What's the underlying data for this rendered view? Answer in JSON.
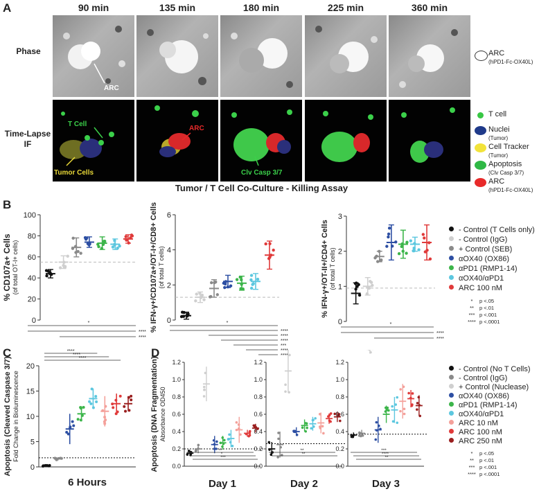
{
  "panelA": {
    "letter": "A",
    "times": [
      "90 min",
      "135 min",
      "180 min",
      "225 min",
      "360 min"
    ],
    "row_phase": "Phase",
    "row_if": "Time-Lapse IF",
    "annot_arc_phase": "ARC",
    "annot_tcell": "T Cell",
    "annot_tumor": "Tumor Cells",
    "annot_arc_if": "ARC",
    "annot_clv": "Clv Casp 3/7",
    "caption": "Tumor / T Cell Co-Culture - Killing Assay",
    "legend_phase": {
      "label": "ARC",
      "sub": "(hPD1-Fc-OX40L)"
    },
    "legend_if": [
      {
        "label": "T cell",
        "sub": "",
        "color": "#38c744"
      },
      {
        "label": "Nuclei",
        "sub": "(Tumor)",
        "color": "#1f3a8a"
      },
      {
        "label": "Cell Tracker",
        "sub": "(Tumor)",
        "color": "#f2e33a"
      },
      {
        "label": "Apoptosis",
        "sub": "(Clv Casp 3/7)",
        "color": "#2fb845"
      },
      {
        "label": "ARC",
        "sub": "(hPD1-Fc-OX40L)",
        "color": "#e82a2a"
      }
    ]
  },
  "panelB": {
    "letter": "B",
    "legend": [
      {
        "label": "- Control (T Cells only)",
        "color": "#111111"
      },
      {
        "label": "- Control (IgG)",
        "color": "#cfcfcf"
      },
      {
        "label": "+ Control (SEB)",
        "color": "#8a8a8a"
      },
      {
        "label": "αOX40 (OX86)",
        "color": "#2d4fa3"
      },
      {
        "label": "αPD1 (RMP1-14)",
        "color": "#3cb54a"
      },
      {
        "label": "αOX40/αPD1",
        "color": "#5cc7df"
      },
      {
        "label": "ARC 100 nM",
        "color": "#e03a3a"
      }
    ],
    "pvals": [
      {
        "stars": "*",
        "text": "p <.05"
      },
      {
        "stars": "**",
        "text": "p <.01"
      },
      {
        "stars": "***",
        "text": "p <.001"
      },
      {
        "stars": "****",
        "text": "p <.0001"
      }
    ]
  },
  "chart_data": [
    {
      "type": "scatter",
      "title": "",
      "ylabel": "% CD107a+ Cells",
      "ylabel_sub": "(of total OT-I+ cells)",
      "ylim": [
        0,
        100
      ],
      "yticks": [
        0,
        20,
        40,
        60,
        80,
        100
      ],
      "groups": [
        "- Control (T Cells only)",
        "- Control (IgG)",
        "+ Control (SEB)",
        "αOX40 (OX86)",
        "αPD1 (RMP1-14)",
        "αOX40/αPD1",
        "ARC 100 nM"
      ],
      "means": [
        44,
        55,
        69,
        74,
        73,
        72,
        77
      ],
      "errors": [
        4,
        6,
        9,
        5,
        6,
        5,
        4
      ],
      "baseline": 55,
      "sig_stars": [
        "*",
        "****",
        "****"
      ]
    },
    {
      "type": "scatter",
      "title": "",
      "ylabel": "% IFN-γ+/CD107a+/OT-I+/CD8+ Cells",
      "ylabel_sub": "(of total T cells)",
      "ylim": [
        0,
        6
      ],
      "yticks": [
        0,
        2,
        4,
        6
      ],
      "groups": [
        "- Control (T Cells only)",
        "- Control (IgG)",
        "+ Control (SEB)",
        "αOX40 (OX86)",
        "αPD1 (RMP1-14)",
        "αOX40/αPD1",
        "ARC 100 nM"
      ],
      "means": [
        0.25,
        1.3,
        1.8,
        2.2,
        2.1,
        2.2,
        3.7
      ],
      "errors": [
        0.2,
        0.3,
        0.5,
        0.35,
        0.4,
        0.45,
        0.8
      ],
      "baseline": 1.3,
      "sig_stars": [
        "*",
        "****",
        "****",
        "****",
        "***",
        "****",
        "****"
      ]
    },
    {
      "type": "scatter",
      "title": "",
      "ylabel": "% IFN-γ+/OT-II+/CD4+ Cells",
      "ylabel_sub": "(of total T cells)",
      "ylim": [
        0,
        3
      ],
      "yticks": [
        0,
        1,
        2,
        3
      ],
      "groups": [
        "- Control (T Cells only)",
        "- Control (IgG)",
        "+ Control (SEB)",
        "αOX40 (OX86)",
        "αPD1 (RMP1-14)",
        "αOX40/αPD1",
        "ARC 100 nM"
      ],
      "means": [
        0.8,
        1.0,
        1.85,
        2.25,
        2.2,
        2.2,
        2.25
      ],
      "errors": [
        0.3,
        0.25,
        0.15,
        0.5,
        0.4,
        0.2,
        0.5
      ],
      "baseline": 0.95,
      "sig_stars": [
        "*",
        "****",
        "****"
      ]
    },
    {
      "type": "scatter",
      "ylabel": "Apoptosis (Cleaved Caspase 3/7)",
      "ylabel_sub": "Fold Change in Bioluminescence",
      "xlabel": "6 Hours",
      "ylim": [
        0,
        20
      ],
      "yticks": [
        0,
        5,
        10,
        15,
        20
      ],
      "groups": [
        "- Control (No T Cells)",
        "- Control (IgG)",
        "αOX40 (OX86)",
        "αPD1 (RMP1-14)",
        "αOX40/αPD1",
        "ARC 10 nM",
        "ARC 100 nM",
        "ARC 250 nM"
      ],
      "means": [
        0.2,
        1.6,
        7.5,
        10.5,
        13.5,
        11,
        12.5,
        12.5
      ],
      "errors": [
        0.1,
        0.3,
        3,
        1.5,
        2,
        3,
        2,
        1.5
      ],
      "baseline": 1.8,
      "sig_stars": [
        "****",
        "****",
        "****"
      ]
    },
    {
      "type": "scatter",
      "ylabel": "Apoptosis (DNA Fragmentation)",
      "ylabel_sub": "Absorbance OD450",
      "ylim": [
        0,
        1.2
      ],
      "yticks": [
        0.0,
        0.2,
        0.4,
        0.6,
        0.8,
        1.0,
        1.2
      ],
      "days": [
        "Day 1",
        "Day 2",
        "Day 3"
      ],
      "groups": [
        "- Control (No T Cells)",
        "- Control (IgG)",
        "+ Control (Nuclease)",
        "αOX40 (OX86)",
        "αPD1 (RMP1-14)",
        "αOX40/αPD1",
        "ARC 10 nM",
        "ARC 100 nM",
        "ARC 250 nM"
      ],
      "means_by_day": [
        [
          0.15,
          0.2,
          0.95,
          0.25,
          0.27,
          0.32,
          0.42,
          0.38,
          0.44
        ],
        [
          0.2,
          0.25,
          1.1,
          0.4,
          0.47,
          0.49,
          0.5,
          0.55,
          0.57
        ],
        [
          0.36,
          0.38,
          1.35,
          0.42,
          0.6,
          0.65,
          0.75,
          0.78,
          0.7
        ]
      ],
      "errors_by_day": [
        [
          0.03,
          0.05,
          0.2,
          0.1,
          0.08,
          0.1,
          0.15,
          0.04,
          0.05
        ],
        [
          0.08,
          0.15,
          0.25,
          0.05,
          0.07,
          0.08,
          0.12,
          0.06,
          0.06
        ],
        [
          0.03,
          0.04,
          0.05,
          0.15,
          0.1,
          0.15,
          0.2,
          0.1,
          0.12
        ]
      ],
      "baselines": [
        0.2,
        0.26,
        0.37
      ],
      "sig_stars_by_day": [
        [
          "**",
          "*",
          "***"
        ],
        [
          "**",
          "**"
        ],
        [
          "***",
          "****",
          "**"
        ]
      ]
    }
  ],
  "panelC": {
    "letter": "C"
  },
  "panelD": {
    "letter": "D",
    "legend": [
      {
        "label": "- Control (No T Cells)",
        "color": "#111111"
      },
      {
        "label": "- Control (IgG)",
        "color": "#8a8a8a"
      },
      {
        "label": "+ Control (Nuclease)",
        "color": "#cfcfcf"
      },
      {
        "label": "αOX40 (OX86)",
        "color": "#2d4fa3"
      },
      {
        "label": "αPD1 (RMP1-14)",
        "color": "#3cb54a"
      },
      {
        "label": "αOX40/αPD1",
        "color": "#5cc7df"
      },
      {
        "label": "ARC 10 nM",
        "color": "#f4a09a"
      },
      {
        "label": "ARC 100 nM",
        "color": "#e03a3a"
      },
      {
        "label": "ARC 250 nM",
        "color": "#9a1f1f"
      }
    ],
    "pvals": [
      {
        "stars": "*",
        "text": "p <.05"
      },
      {
        "stars": "**",
        "text": "p <.01"
      },
      {
        "stars": "***",
        "text": "p <.001"
      },
      {
        "stars": "****",
        "text": "p <.0001"
      }
    ]
  },
  "colors": {
    "c_neg": "#111111",
    "c_igg": "#cfcfcf",
    "c_pos": "#8a8a8a",
    "c_ox40": "#2d4fa3",
    "c_pd1": "#3cb54a",
    "c_combo": "#5cc7df",
    "c_arc": "#e03a3a",
    "c_arc10": "#f4a09a",
    "c_arc250": "#9a1f1f"
  }
}
